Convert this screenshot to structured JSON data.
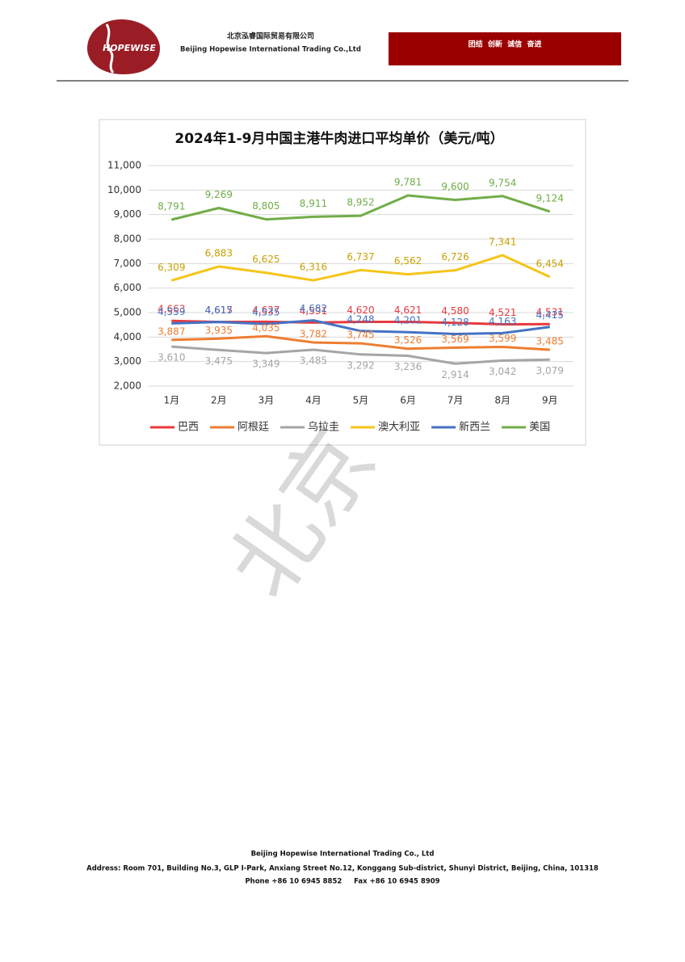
{
  "header": {
    "logo": "HOPEWISE",
    "company_cn": "北京泓睿国际贸易有限公司",
    "company_en": "Beijing Hopewise International Trading Co.,Ltd",
    "slogan": "团结  创新  诚信  奋进"
  },
  "watermark": "北京",
  "chart_data": {
    "type": "line",
    "title": "2024年1-9月中国主港牛肉进口平均单价（美元/吨）",
    "categories": [
      "1月",
      "2月",
      "3月",
      "4月",
      "5月",
      "6月",
      "7月",
      "8月",
      "9月"
    ],
    "ylim": [
      2000,
      11000
    ],
    "yticks": [
      {
        "value": 2000,
        "label": "2,000"
      },
      {
        "value": 3000,
        "label": "3,000"
      },
      {
        "value": 4000,
        "label": "4,000"
      },
      {
        "value": 5000,
        "label": "5,000"
      },
      {
        "value": 6000,
        "label": "6,000"
      },
      {
        "value": 7000,
        "label": "7,000"
      },
      {
        "value": 8000,
        "label": "8,000"
      },
      {
        "value": 9000,
        "label": "9,000"
      },
      {
        "value": 10000,
        "label": "10,000"
      },
      {
        "value": 11000,
        "label": "11,000"
      }
    ],
    "grid": true,
    "legend": "bottom",
    "series": [
      {
        "name": "巴西",
        "color": "#e8393c",
        "values": [
          4663,
          4617,
          4627,
          4591,
          4620,
          4621,
          4580,
          4521,
          4531
        ],
        "value_labels": [
          "4,663",
          "4,617",
          "4,627",
          "4,591",
          "4,620",
          "4,621",
          "4,580",
          "4,521",
          "4,531"
        ]
      },
      {
        "name": "阿根廷",
        "color": "#ed7d31",
        "values": [
          3887,
          3935,
          4035,
          3782,
          3745,
          3526,
          3569,
          3599,
          3485
        ],
        "value_labels": [
          "3,887",
          "3,935",
          "4,035",
          "3,782",
          "3,745",
          "3,526",
          "3,569",
          "3,599",
          "3,485"
        ]
      },
      {
        "name": "乌拉圭",
        "color": "#a5a5a5",
        "values": [
          3610,
          3475,
          3349,
          3485,
          3292,
          3236,
          2914,
          3042,
          3079
        ],
        "value_labels": [
          "3,610",
          "3,475",
          "3,349",
          "3,485",
          "3,292",
          "3,236",
          "2,914",
          "3,042",
          "3,079"
        ]
      },
      {
        "name": "澳大利亚",
        "color": "#f5c518",
        "values": [
          6309,
          6883,
          6625,
          6316,
          6737,
          6562,
          6726,
          7341,
          6454
        ],
        "value_labels": [
          "6,309",
          "6,883",
          "6,625",
          "6,316",
          "6,737",
          "6,562",
          "6,726",
          "7,341",
          "6,454"
        ]
      },
      {
        "name": "新西兰",
        "color": "#4472c4",
        "values": [
          4559,
          4615,
          4535,
          4682,
          4248,
          4201,
          4128,
          4163,
          4415
        ],
        "value_labels": [
          "4,559",
          "4,615",
          "4,535",
          "4,682",
          "4,248",
          "4,201",
          "4,128",
          "4,163",
          "4,415"
        ]
      },
      {
        "name": "美国",
        "color": "#70ad47",
        "values": [
          8791,
          9269,
          8805,
          8911,
          8952,
          9781,
          9600,
          9754,
          9124
        ],
        "value_labels": [
          "8,791",
          "9,269",
          "8,805",
          "8,911",
          "8,952",
          "9,781",
          "9,600",
          "9,754",
          "9,124"
        ]
      }
    ]
  },
  "footer": {
    "company": "Beijing Hopewise International Trading Co., Ltd",
    "address": "Address: Room 701, Building No.3, GLP I-Park, Anxiang Street No.12, Konggang Sub-district, Shunyi District, Beijing, China, 101318",
    "contact": "Phone +86 10 6945 8852     Fax +86 10 6945 8909"
  }
}
